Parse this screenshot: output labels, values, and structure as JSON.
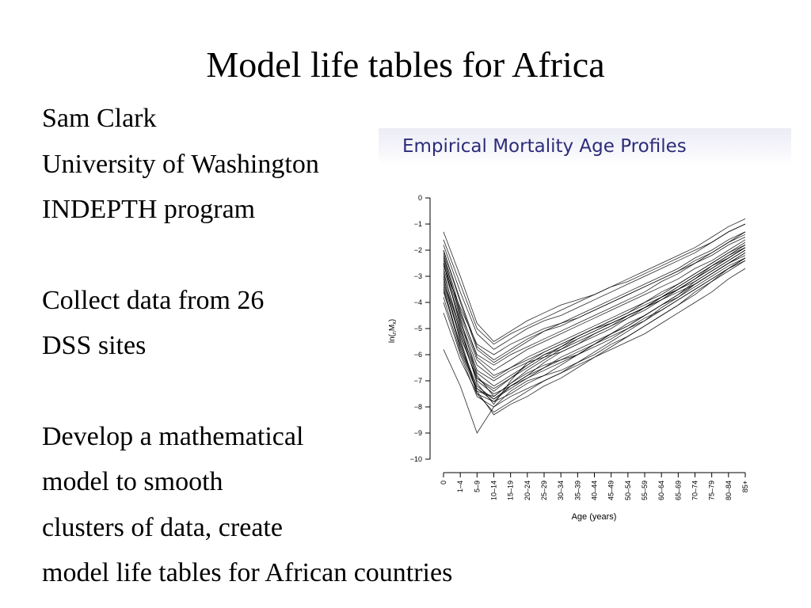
{
  "slide": {
    "title": "Model life tables for Africa",
    "lines": [
      "Sam Clark",
      "University of Washington",
      "INDEPTH program",
      "Collect data from 26",
      "DSS sites",
      "Develop a mathematical",
      "model to smooth",
      "clusters of data, create",
      "model life tables for African countries"
    ]
  },
  "chart_data": {
    "type": "line",
    "title": "Empirical Mortality Age Profiles",
    "xlabel": "Age (years)",
    "ylabel": "ln(nMx)",
    "categories": [
      "0",
      "1–4",
      "5–9",
      "10–14",
      "15–19",
      "20–24",
      "25–29",
      "30–34",
      "35–39",
      "40–44",
      "45–49",
      "50–54",
      "55–59",
      "60–64",
      "65–69",
      "70–74",
      "75–79",
      "80–84",
      "85+"
    ],
    "ylim": [
      -10,
      0
    ],
    "yticks": [
      0,
      -1,
      -2,
      -3,
      -4,
      -5,
      -6,
      -7,
      -8,
      -9,
      -10
    ],
    "ytick_labels": [
      "0",
      "−1",
      "−2",
      "−3",
      "−4",
      "−5",
      "−6",
      "−7",
      "−8",
      "−9",
      "−10"
    ],
    "grid": false,
    "line_color": "#000000",
    "series": [
      {
        "values": [
          -2.2,
          -4.5,
          -6.2,
          -6.8,
          -6.5,
          -6.2,
          -5.9,
          -5.6,
          -5.3,
          -5.0,
          -4.8,
          -4.5,
          -4.2,
          -3.8,
          -3.5,
          -3.1,
          -2.7,
          -2.3,
          -1.9
        ]
      },
      {
        "values": [
          -2.8,
          -5.2,
          -7.0,
          -7.5,
          -7.2,
          -6.9,
          -6.6,
          -6.3,
          -6.0,
          -5.6,
          -5.2,
          -4.9,
          -4.5,
          -4.1,
          -3.7,
          -3.2,
          -2.8,
          -2.4,
          -2.0
        ]
      },
      {
        "values": [
          -1.3,
          -3.0,
          -4.8,
          -5.5,
          -5.1,
          -4.7,
          -4.4,
          -4.1,
          -3.9,
          -3.7,
          -3.4,
          -3.1,
          -2.8,
          -2.5,
          -2.2,
          -1.9,
          -1.5,
          -1.1,
          -0.8
        ]
      },
      {
        "values": [
          -3.5,
          -5.8,
          -7.3,
          -7.8,
          -7.5,
          -7.1,
          -6.8,
          -6.4,
          -6.0,
          -5.6,
          -5.2,
          -4.9,
          -4.5,
          -4.1,
          -3.7,
          -3.3,
          -2.9,
          -2.5,
          -2.1
        ]
      },
      {
        "values": [
          -2.0,
          -4.0,
          -5.8,
          -6.3,
          -5.9,
          -5.5,
          -5.1,
          -4.8,
          -4.6,
          -4.3,
          -4.0,
          -3.7,
          -3.4,
          -3.1,
          -2.8,
          -2.5,
          -2.2,
          -1.8,
          -1.5
        ]
      },
      {
        "values": [
          -3.0,
          -5.5,
          -7.5,
          -8.2,
          -7.8,
          -7.4,
          -7.0,
          -6.7,
          -6.3,
          -5.9,
          -5.5,
          -5.1,
          -4.7,
          -4.2,
          -3.8,
          -3.3,
          -2.9,
          -2.5,
          -2.2
        ]
      },
      {
        "values": [
          -2.5,
          -4.8,
          -6.6,
          -7.0,
          -6.6,
          -6.3,
          -6.1,
          -5.9,
          -5.6,
          -5.3,
          -5.0,
          -4.6,
          -4.2,
          -3.9,
          -3.5,
          -3.1,
          -2.6,
          -2.2,
          -1.8
        ]
      },
      {
        "values": [
          -1.8,
          -3.6,
          -5.2,
          -5.8,
          -5.4,
          -5.0,
          -4.7,
          -4.5,
          -4.2,
          -3.9,
          -3.6,
          -3.3,
          -3.0,
          -2.7,
          -2.4,
          -2.1,
          -1.7,
          -1.3,
          -1.0
        ]
      },
      {
        "values": [
          -5.8,
          -7.2,
          -9.0,
          -8.0,
          -7.6,
          -7.3,
          -7.0,
          -6.7,
          -6.4,
          -6.1,
          -5.8,
          -5.5,
          -5.2,
          -4.8,
          -4.4,
          -4.0,
          -3.6,
          -3.1,
          -2.7
        ]
      },
      {
        "values": [
          -2.4,
          -4.6,
          -6.8,
          -7.6,
          -7.1,
          -6.6,
          -6.2,
          -5.8,
          -5.4,
          -5.1,
          -4.8,
          -4.5,
          -4.2,
          -3.9,
          -3.6,
          -3.3,
          -2.9,
          -2.5,
          -2.1
        ]
      },
      {
        "values": [
          -3.2,
          -5.3,
          -6.9,
          -7.3,
          -6.9,
          -6.5,
          -6.1,
          -5.7,
          -5.3,
          -5.0,
          -4.7,
          -4.4,
          -4.1,
          -3.8,
          -3.5,
          -3.2,
          -2.8,
          -2.4,
          -2.0
        ]
      },
      {
        "values": [
          -2.6,
          -4.2,
          -5.6,
          -6.0,
          -5.6,
          -5.3,
          -5.0,
          -4.8,
          -4.5,
          -4.2,
          -3.9,
          -3.6,
          -3.3,
          -3.0,
          -2.7,
          -2.3,
          -2.0,
          -1.6,
          -1.3
        ]
      },
      {
        "values": [
          -4.0,
          -6.0,
          -7.6,
          -8.0,
          -7.4,
          -7.0,
          -6.8,
          -6.6,
          -6.3,
          -6.0,
          -5.6,
          -5.3,
          -4.9,
          -4.5,
          -4.1,
          -3.7,
          -3.2,
          -2.8,
          -2.4
        ]
      },
      {
        "values": [
          -2.1,
          -4.3,
          -6.1,
          -6.6,
          -6.2,
          -5.8,
          -5.5,
          -5.2,
          -4.9,
          -4.6,
          -4.3,
          -4.0,
          -3.7,
          -3.4,
          -3.1,
          -2.7,
          -2.4,
          -2.0,
          -1.6
        ]
      },
      {
        "values": [
          -3.6,
          -5.6,
          -7.2,
          -7.7,
          -7.3,
          -6.9,
          -6.5,
          -6.1,
          -5.8,
          -5.5,
          -5.2,
          -4.8,
          -4.5,
          -4.1,
          -3.8,
          -3.4,
          -3.0,
          -2.6,
          -2.3
        ]
      },
      {
        "values": [
          -2.9,
          -5.0,
          -7.1,
          -7.9,
          -7.0,
          -6.3,
          -5.9,
          -5.6,
          -5.3,
          -5.0,
          -4.7,
          -4.4,
          -4.0,
          -3.7,
          -3.3,
          -2.9,
          -2.5,
          -2.1,
          -1.7
        ]
      },
      {
        "values": [
          -1.6,
          -3.3,
          -5.0,
          -5.6,
          -5.2,
          -4.9,
          -4.6,
          -4.3,
          -4.0,
          -3.7,
          -3.4,
          -3.2,
          -2.9,
          -2.6,
          -2.3,
          -2.0,
          -1.7,
          -1.3,
          -1.0
        ]
      },
      {
        "values": [
          -3.3,
          -5.4,
          -7.4,
          -8.3,
          -7.9,
          -7.6,
          -7.2,
          -6.9,
          -6.5,
          -6.1,
          -5.7,
          -5.3,
          -4.9,
          -4.5,
          -4.1,
          -3.6,
          -3.2,
          -2.7,
          -2.3
        ]
      },
      {
        "values": [
          -2.7,
          -4.7,
          -6.4,
          -6.9,
          -6.5,
          -6.1,
          -5.8,
          -5.5,
          -5.2,
          -4.9,
          -4.6,
          -4.3,
          -4.0,
          -3.6,
          -3.3,
          -2.9,
          -2.5,
          -2.1,
          -1.8
        ]
      },
      {
        "values": [
          -4.4,
          -6.2,
          -7.5,
          -7.8,
          -7.2,
          -6.8,
          -6.5,
          -6.2,
          -5.9,
          -5.6,
          -5.3,
          -5.0,
          -4.6,
          -4.3,
          -3.9,
          -3.5,
          -3.1,
          -2.7,
          -2.3
        ]
      },
      {
        "values": [
          -2.3,
          -4.4,
          -6.0,
          -6.4,
          -6.0,
          -5.7,
          -5.4,
          -5.1,
          -4.8,
          -4.5,
          -4.2,
          -3.9,
          -3.6,
          -3.2,
          -2.9,
          -2.5,
          -2.1,
          -1.7,
          -1.3
        ]
      },
      {
        "values": [
          -3.8,
          -5.9,
          -7.4,
          -7.6,
          -7.1,
          -6.7,
          -6.4,
          -6.2,
          -6.0,
          -5.7,
          -5.4,
          -5.0,
          -4.7,
          -4.3,
          -3.9,
          -3.5,
          -3.1,
          -2.7,
          -2.4
        ]
      },
      {
        "values": [
          -2.0,
          -3.9,
          -5.7,
          -6.2,
          -5.8,
          -5.4,
          -5.1,
          -4.9,
          -4.6,
          -4.3,
          -4.0,
          -3.7,
          -3.4,
          -3.1,
          -2.8,
          -2.4,
          -2.1,
          -1.7,
          -1.4
        ]
      },
      {
        "values": [
          -3.1,
          -5.1,
          -6.7,
          -7.2,
          -6.8,
          -6.4,
          -6.0,
          -5.7,
          -5.4,
          -5.1,
          -4.8,
          -4.5,
          -4.2,
          -3.8,
          -3.4,
          -3.0,
          -2.6,
          -2.2,
          -1.9
        ]
      },
      {
        "values": [
          -2.5,
          -4.9,
          -6.9,
          -7.4,
          -6.9,
          -6.4,
          -6.0,
          -5.8,
          -5.5,
          -5.2,
          -4.9,
          -4.6,
          -4.3,
          -3.9,
          -3.5,
          -3.1,
          -2.7,
          -2.3,
          -1.9
        ]
      },
      {
        "values": [
          -3.4,
          -5.7,
          -7.3,
          -7.7,
          -7.2,
          -6.8,
          -6.3,
          -5.9,
          -5.6,
          -5.2,
          -4.9,
          -4.5,
          -4.2,
          -3.8,
          -3.4,
          -3.0,
          -2.6,
          -2.3,
          -1.9
        ]
      }
    ]
  }
}
